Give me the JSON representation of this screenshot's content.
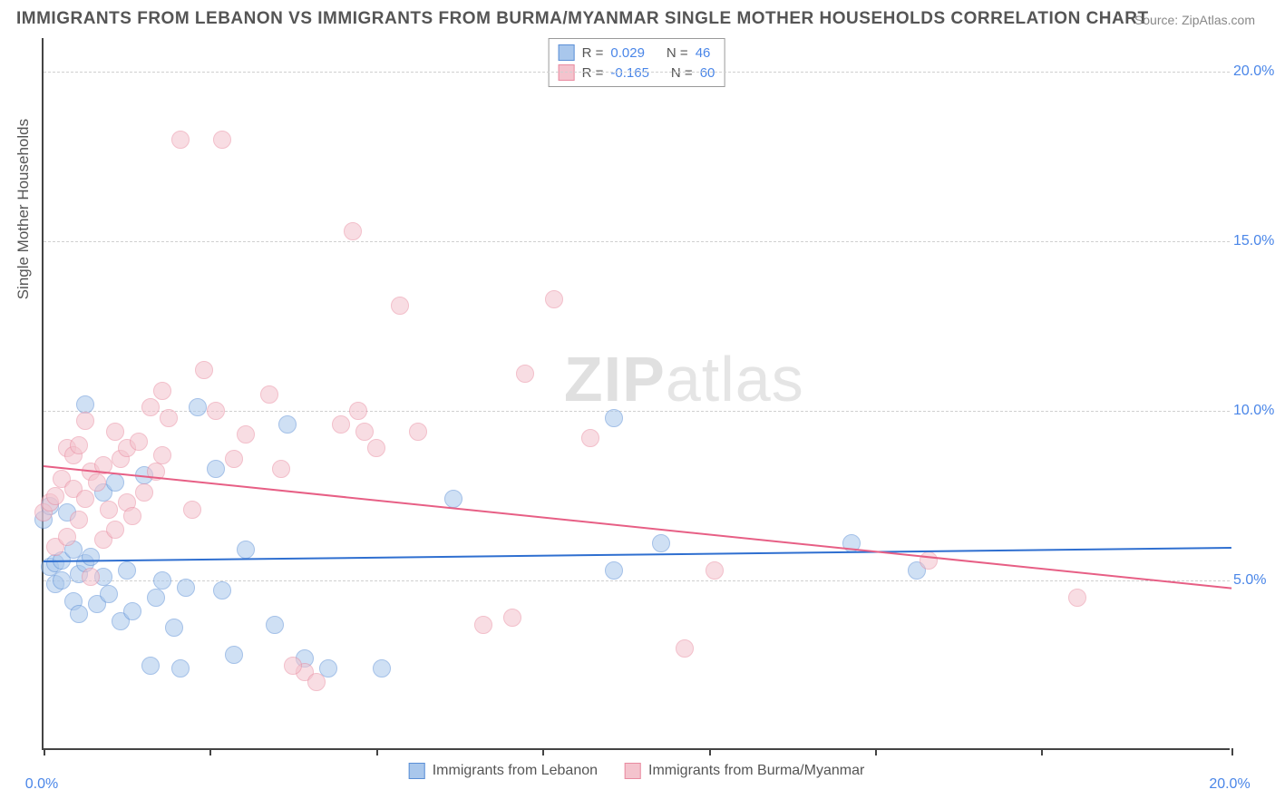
{
  "title": "IMMIGRANTS FROM LEBANON VS IMMIGRANTS FROM BURMA/MYANMAR SINGLE MOTHER HOUSEHOLDS CORRELATION CHART",
  "source": "Source: ZipAtlas.com",
  "ylabel": "Single Mother Households",
  "watermark_bold": "ZIP",
  "watermark_thin": "atlas",
  "chart": {
    "type": "scatter",
    "xlim": [
      0,
      20
    ],
    "ylim": [
      0,
      21
    ],
    "yticks": [
      5,
      10,
      15,
      20
    ],
    "ytick_labels": [
      "5.0%",
      "10.0%",
      "15.0%",
      "20.0%"
    ],
    "xticks": [
      0,
      2.8,
      5.6,
      8.4,
      11.2,
      14.0,
      16.8,
      20.0
    ],
    "xtick_labels_shown": {
      "0": "0.0%",
      "20": "20.0%"
    },
    "grid_color": "#d8d8d8",
    "background": "#ffffff",
    "axis_color": "#444444",
    "tick_label_color": "#4a86e8",
    "point_radius": 10,
    "point_opacity": 0.55,
    "series": [
      {
        "name": "Immigrants from Lebanon",
        "key": "lebanon",
        "fill": "#a9c7ec",
        "stroke": "#5b8fd6",
        "trend": {
          "y_at_x0": 5.6,
          "y_at_x20": 6.0,
          "color": "#2f6fd0",
          "width": 2
        },
        "stats": {
          "R": "0.029",
          "N": "46"
        },
        "points": [
          [
            0.0,
            6.8
          ],
          [
            0.1,
            7.2
          ],
          [
            0.1,
            5.4
          ],
          [
            0.2,
            5.5
          ],
          [
            0.2,
            4.9
          ],
          [
            0.3,
            5.6
          ],
          [
            0.3,
            5.0
          ],
          [
            0.4,
            7.0
          ],
          [
            0.5,
            4.4
          ],
          [
            0.5,
            5.9
          ],
          [
            0.6,
            5.2
          ],
          [
            0.6,
            4.0
          ],
          [
            0.7,
            10.2
          ],
          [
            0.7,
            5.5
          ],
          [
            0.8,
            5.7
          ],
          [
            0.9,
            4.3
          ],
          [
            1.0,
            7.6
          ],
          [
            1.0,
            5.1
          ],
          [
            1.1,
            4.6
          ],
          [
            1.2,
            7.9
          ],
          [
            1.3,
            3.8
          ],
          [
            1.4,
            5.3
          ],
          [
            1.5,
            4.1
          ],
          [
            1.7,
            8.1
          ],
          [
            1.8,
            2.5
          ],
          [
            1.9,
            4.5
          ],
          [
            2.0,
            5.0
          ],
          [
            2.2,
            3.6
          ],
          [
            2.3,
            2.4
          ],
          [
            2.4,
            4.8
          ],
          [
            2.6,
            10.1
          ],
          [
            2.9,
            8.3
          ],
          [
            3.0,
            4.7
          ],
          [
            3.2,
            2.8
          ],
          [
            3.4,
            5.9
          ],
          [
            3.9,
            3.7
          ],
          [
            4.1,
            9.6
          ],
          [
            4.4,
            2.7
          ],
          [
            4.8,
            2.4
          ],
          [
            5.7,
            2.4
          ],
          [
            6.9,
            7.4
          ],
          [
            9.6,
            9.8
          ],
          [
            9.6,
            5.3
          ],
          [
            10.4,
            6.1
          ],
          [
            13.6,
            6.1
          ],
          [
            14.7,
            5.3
          ]
        ]
      },
      {
        "name": "Immigrants from Burma/Myanmar",
        "key": "burma",
        "fill": "#f4c3cd",
        "stroke": "#e98ba0",
        "trend": {
          "y_at_x0": 8.4,
          "y_at_x20": 4.8,
          "color": "#e75f85",
          "width": 2
        },
        "stats": {
          "R": "-0.165",
          "N": "60"
        },
        "points": [
          [
            0.0,
            7.0
          ],
          [
            0.1,
            7.3
          ],
          [
            0.2,
            6.0
          ],
          [
            0.2,
            7.5
          ],
          [
            0.3,
            8.0
          ],
          [
            0.4,
            8.9
          ],
          [
            0.4,
            6.3
          ],
          [
            0.5,
            8.7
          ],
          [
            0.5,
            7.7
          ],
          [
            0.6,
            9.0
          ],
          [
            0.6,
            6.8
          ],
          [
            0.7,
            9.7
          ],
          [
            0.7,
            7.4
          ],
          [
            0.8,
            5.1
          ],
          [
            0.8,
            8.2
          ],
          [
            0.9,
            7.9
          ],
          [
            1.0,
            8.4
          ],
          [
            1.0,
            6.2
          ],
          [
            1.1,
            7.1
          ],
          [
            1.2,
            9.4
          ],
          [
            1.2,
            6.5
          ],
          [
            1.3,
            8.6
          ],
          [
            1.4,
            7.3
          ],
          [
            1.4,
            8.9
          ],
          [
            1.5,
            6.9
          ],
          [
            1.6,
            9.1
          ],
          [
            1.7,
            7.6
          ],
          [
            1.8,
            10.1
          ],
          [
            1.9,
            8.2
          ],
          [
            2.0,
            10.6
          ],
          [
            2.0,
            8.7
          ],
          [
            2.1,
            9.8
          ],
          [
            2.3,
            18.0
          ],
          [
            2.5,
            7.1
          ],
          [
            2.7,
            11.2
          ],
          [
            2.9,
            10.0
          ],
          [
            3.0,
            18.0
          ],
          [
            3.2,
            8.6
          ],
          [
            3.4,
            9.3
          ],
          [
            3.8,
            10.5
          ],
          [
            4.0,
            8.3
          ],
          [
            4.4,
            2.3
          ],
          [
            4.6,
            2.0
          ],
          [
            5.0,
            9.6
          ],
          [
            5.2,
            15.3
          ],
          [
            5.3,
            10.0
          ],
          [
            5.4,
            9.4
          ],
          [
            5.6,
            8.9
          ],
          [
            6.0,
            13.1
          ],
          [
            6.3,
            9.4
          ],
          [
            7.4,
            3.7
          ],
          [
            7.9,
            3.9
          ],
          [
            8.1,
            11.1
          ],
          [
            8.6,
            13.3
          ],
          [
            9.2,
            9.2
          ],
          [
            10.8,
            3.0
          ],
          [
            11.3,
            5.3
          ],
          [
            14.9,
            5.6
          ],
          [
            17.4,
            4.5
          ],
          [
            4.2,
            2.5
          ]
        ]
      }
    ]
  },
  "legend_top": {
    "r_label": "R =",
    "n_label": "N ="
  },
  "legend_bottom": [
    {
      "swatch_fill": "#a9c7ec",
      "swatch_stroke": "#5b8fd6",
      "label": "Immigrants from Lebanon"
    },
    {
      "swatch_fill": "#f4c3cd",
      "swatch_stroke": "#e98ba0",
      "label": "Immigrants from Burma/Myanmar"
    }
  ]
}
